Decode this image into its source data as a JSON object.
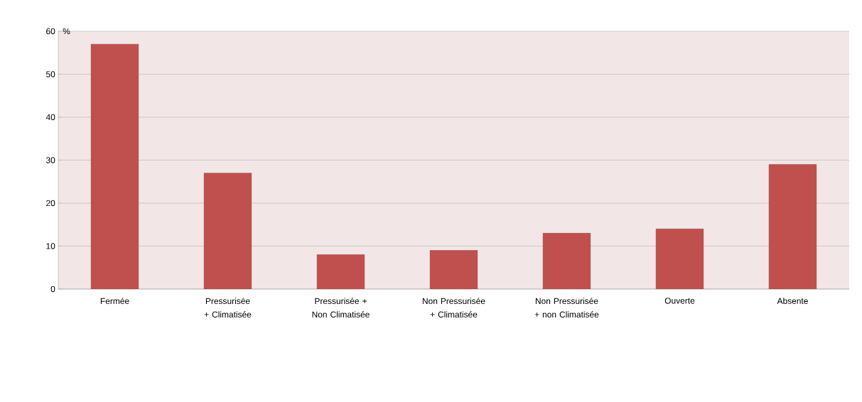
{
  "chart_data": {
    "type": "bar",
    "ylabel": "%",
    "categories": [
      "Fermée",
      "Pressurisée + Climatisée",
      "Pressurisée + Non Climatisée",
      "Non Pressurisée + Climatisée",
      "Non Pressurisée + non Climatisée",
      "Ouverte",
      "Absente"
    ],
    "values": [
      57,
      27,
      8,
      9,
      13,
      14,
      29
    ],
    "color": "#c0504d",
    "ylim": [
      0,
      60
    ],
    "yticks": [
      0,
      10,
      20,
      30,
      40,
      50,
      60
    ],
    "grid": "y"
  }
}
